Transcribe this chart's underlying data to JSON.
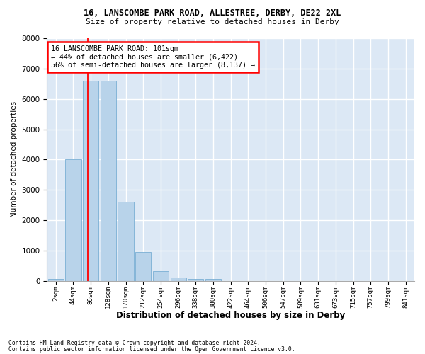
{
  "title1": "16, LANSCOMBE PARK ROAD, ALLESTREE, DERBY, DE22 2XL",
  "title2": "Size of property relative to detached houses in Derby",
  "xlabel": "Distribution of detached houses by size in Derby",
  "ylabel": "Number of detached properties",
  "bar_color": "#b8d3ea",
  "bar_edge_color": "#7aafd4",
  "plot_bg_color": "#dce8f5",
  "fig_bg_color": "#ffffff",
  "grid_color": "#ffffff",
  "bin_labels": [
    "2sqm",
    "44sqm",
    "86sqm",
    "128sqm",
    "170sqm",
    "212sqm",
    "254sqm",
    "296sqm",
    "338sqm",
    "380sqm",
    "422sqm",
    "464sqm",
    "506sqm",
    "547sqm",
    "589sqm",
    "631sqm",
    "673sqm",
    "715sqm",
    "757sqm",
    "799sqm",
    "841sqm"
  ],
  "bar_values": [
    70,
    4000,
    6600,
    6600,
    2620,
    950,
    330,
    110,
    60,
    60,
    0,
    0,
    0,
    0,
    0,
    0,
    0,
    0,
    0,
    0,
    0
  ],
  "ylim": [
    0,
    8000
  ],
  "yticks": [
    0,
    1000,
    2000,
    3000,
    4000,
    5000,
    6000,
    7000,
    8000
  ],
  "property_line_x": 1.85,
  "annotation_title": "16 LANSCOMBE PARK ROAD: 101sqm",
  "annotation_line1": "← 44% of detached houses are smaller (6,422)",
  "annotation_line2": "56% of semi-detached houses are larger (8,137) →",
  "footnote1": "Contains HM Land Registry data © Crown copyright and database right 2024.",
  "footnote2": "Contains public sector information licensed under the Open Government Licence v3.0."
}
